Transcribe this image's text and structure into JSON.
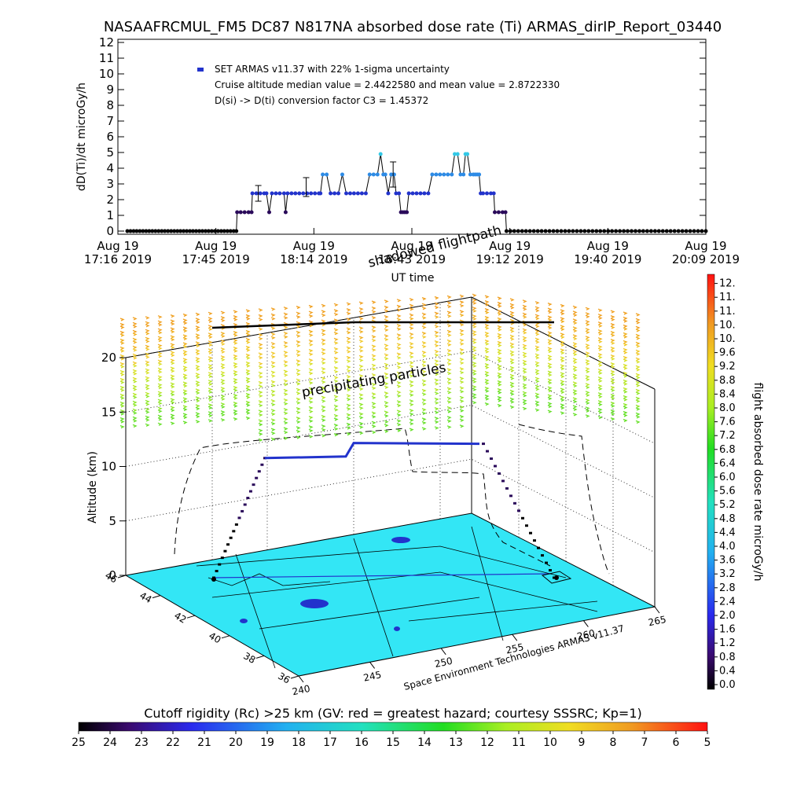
{
  "title": "NASAAFRCMUL_FM5 DC87 N817NA absorbed dose rate (Ti) ARMAS_dirIP_Report_03440",
  "colors": {
    "dose_dark": "#2a0a5a",
    "dose_blue": "#2233cc",
    "dose_cyan": "#33c8e6",
    "map_fill": "#33e6f5",
    "line": "#000000"
  },
  "chart_data": [
    {
      "type": "line",
      "ylabel": "dD(Ti)/dt microGy/h",
      "xlabel": "UT time",
      "ylim": [
        0,
        12
      ],
      "yticks": [
        "0",
        "1",
        "2",
        "3",
        "4",
        "5",
        "6",
        "7",
        "8",
        "9",
        "10",
        "11",
        "12"
      ],
      "xticks": [
        {
          "l1": "Aug 19",
          "l2": "17:16 2019"
        },
        {
          "l1": "Aug 19",
          "l2": "17:45 2019"
        },
        {
          "l1": "Aug 19",
          "l2": "18:14 2019"
        },
        {
          "l1": "Aug 19",
          "l2": "18:43 2019"
        },
        {
          "l1": "Aug 19",
          "l2": "19:12 2019"
        },
        {
          "l1": "Aug 19",
          "l2": "19:40 2019"
        },
        {
          "l1": "Aug 19",
          "l2": "20:09 2019"
        }
      ],
      "legend": [
        "SET ARMAS v11.37 with 22% 1-sigma uncertainty",
        "Cruise altitude median value = 2.4422580 and mean value = 2.8722330",
        "D(si) -> D(ti) conversion factor C3 = 1.45372"
      ],
      "overlay_label": "shadowed flightpath",
      "series": [
        {
          "values": [
            [
              0,
              0
            ],
            [
              1.6,
              0
            ],
            [
              3.2,
              0
            ],
            [
              4.8,
              0
            ],
            [
              6.4,
              0
            ],
            [
              8.0,
              0
            ],
            [
              9.6,
              0
            ],
            [
              11.2,
              0
            ],
            [
              12.8,
              0
            ],
            [
              14.4,
              0
            ],
            [
              16.0,
              0
            ],
            [
              17.6,
              0
            ],
            [
              19.2,
              0
            ],
            [
              20.8,
              0
            ],
            [
              22.4,
              0
            ],
            [
              24.0,
              0
            ],
            [
              25.6,
              0
            ],
            [
              27.2,
              0
            ],
            [
              28.8,
              0
            ],
            [
              30.4,
              0
            ],
            [
              32.0,
              0
            ],
            [
              33.6,
              0
            ],
            [
              35.2,
              0
            ],
            [
              36.8,
              0
            ],
            [
              38.4,
              0
            ],
            [
              40.0,
              0
            ],
            [
              41.6,
              0
            ],
            [
              43.2,
              0
            ],
            [
              44.8,
              0
            ],
            [
              46.4,
              0
            ],
            [
              48.0,
              0
            ],
            [
              49.6,
              0
            ],
            [
              51.2,
              0
            ],
            [
              52.8,
              0
            ],
            [
              54.4,
              0
            ],
            [
              55.8,
              0
            ],
            [
              56.2,
              1.2
            ],
            [
              58.0,
              1.2
            ],
            [
              60.0,
              1.2
            ],
            [
              62.0,
              1.2
            ],
            [
              63.6,
              1.2
            ],
            [
              64.0,
              2.4
            ],
            [
              66.0,
              2.4
            ],
            [
              68.0,
              2.4
            ],
            [
              70.0,
              2.4
            ],
            [
              71.2,
              2.4
            ],
            [
              72.6,
              1.2
            ],
            [
              74.0,
              2.4
            ],
            [
              76.0,
              2.4
            ],
            [
              78.0,
              2.4
            ],
            [
              80.2,
              2.4
            ],
            [
              81.0,
              1.2
            ],
            [
              82.0,
              2.4
            ],
            [
              84.0,
              2.4
            ],
            [
              86.0,
              2.4
            ],
            [
              88.0,
              2.4
            ],
            [
              90.0,
              2.4
            ],
            [
              92.0,
              2.4
            ],
            [
              94.0,
              2.4
            ],
            [
              96.0,
              2.4
            ],
            [
              98.0,
              2.4
            ],
            [
              98.8,
              2.4
            ],
            [
              100.0,
              3.6
            ],
            [
              102.0,
              3.6
            ],
            [
              104.0,
              2.4
            ],
            [
              106.0,
              2.4
            ],
            [
              108.0,
              2.4
            ],
            [
              110.0,
              3.6
            ],
            [
              112.0,
              2.4
            ],
            [
              114.0,
              2.4
            ],
            [
              116.0,
              2.4
            ],
            [
              118.0,
              2.4
            ],
            [
              120.0,
              2.4
            ],
            [
              122.0,
              2.4
            ],
            [
              124.0,
              3.6
            ],
            [
              126.0,
              3.6
            ],
            [
              128.0,
              3.6
            ],
            [
              129.6,
              4.9
            ],
            [
              131.0,
              3.6
            ],
            [
              132.0,
              3.6
            ],
            [
              133.5,
              2.4
            ],
            [
              135.0,
              3.6
            ],
            [
              136.5,
              3.6
            ],
            [
              137.5,
              2.4
            ],
            [
              139.0,
              2.4
            ],
            [
              140.0,
              1.2
            ],
            [
              141.0,
              1.2
            ],
            [
              142.0,
              1.2
            ],
            [
              143.0,
              1.2
            ],
            [
              144.0,
              2.4
            ],
            [
              146.0,
              2.4
            ],
            [
              148.0,
              2.4
            ],
            [
              150.0,
              2.4
            ],
            [
              152.0,
              2.4
            ],
            [
              154.0,
              2.4
            ],
            [
              156.0,
              3.6
            ],
            [
              158.0,
              3.6
            ],
            [
              160.0,
              3.6
            ],
            [
              162.0,
              3.6
            ],
            [
              164.0,
              3.6
            ],
            [
              166.0,
              3.6
            ],
            [
              167.5,
              4.9
            ],
            [
              169.0,
              4.9
            ],
            [
              170.5,
              3.6
            ],
            [
              172.0,
              3.6
            ],
            [
              173.0,
              4.9
            ],
            [
              174.0,
              4.9
            ],
            [
              175.5,
              3.6
            ],
            [
              177.0,
              3.6
            ],
            [
              178.0,
              3.6
            ],
            [
              179.0,
              3.6
            ],
            [
              180.0,
              3.6
            ],
            [
              180.8,
              2.4
            ],
            [
              182.0,
              2.4
            ],
            [
              184.0,
              2.4
            ],
            [
              186.0,
              2.4
            ],
            [
              187.5,
              2.4
            ],
            [
              188.0,
              1.2
            ],
            [
              190.0,
              1.2
            ],
            [
              192.0,
              1.2
            ],
            [
              193.5,
              1.2
            ],
            [
              194.0,
              0
            ],
            [
              196.0,
              0
            ],
            [
              198.0,
              0
            ],
            [
              200.0,
              0
            ],
            [
              202.0,
              0
            ],
            [
              204.0,
              0
            ],
            [
              206.0,
              0
            ],
            [
              208.0,
              0
            ],
            [
              210.0,
              0
            ],
            [
              212.0,
              0
            ],
            [
              214.0,
              0
            ],
            [
              216.0,
              0
            ],
            [
              218.0,
              0
            ],
            [
              220.0,
              0
            ],
            [
              222.0,
              0
            ],
            [
              224.0,
              0
            ],
            [
              226.0,
              0
            ],
            [
              228.0,
              0
            ],
            [
              230.0,
              0
            ],
            [
              232.0,
              0
            ],
            [
              234.0,
              0
            ],
            [
              236.0,
              0
            ],
            [
              238.0,
              0
            ],
            [
              240.0,
              0
            ],
            [
              242.0,
              0
            ],
            [
              244.0,
              0
            ],
            [
              246.0,
              0
            ],
            [
              248.0,
              0
            ],
            [
              250.0,
              0
            ],
            [
              252.0,
              0
            ],
            [
              254.0,
              0
            ],
            [
              256.0,
              0
            ],
            [
              258.0,
              0
            ],
            [
              260.0,
              0
            ],
            [
              262.0,
              0
            ],
            [
              264.0,
              0
            ],
            [
              266.0,
              0
            ],
            [
              268.0,
              0
            ],
            [
              270.0,
              0
            ],
            [
              272.0,
              0
            ],
            [
              274.0,
              0
            ],
            [
              276.0,
              0
            ],
            [
              278.0,
              0
            ],
            [
              280.0,
              0
            ],
            [
              282.0,
              0
            ],
            [
              284.0,
              0
            ],
            [
              286.0,
              0
            ],
            [
              288.0,
              0
            ],
            [
              290.0,
              0
            ],
            [
              292.0,
              0
            ],
            [
              294.0,
              0
            ],
            [
              296.0,
              0
            ]
          ]
        }
      ],
      "error_bars": [
        [
          67.0,
          2.4,
          0.5
        ],
        [
          91.5,
          2.8,
          0.6
        ],
        [
          136.0,
          3.6,
          0.8
        ]
      ]
    },
    {
      "type": "scatter",
      "zlabel": "Altitude (km)",
      "zticks": [
        "0",
        "5",
        "10",
        "15",
        "20"
      ],
      "lat_ticks": [
        "36",
        "38",
        "40",
        "42",
        "44",
        "46"
      ],
      "lon_ticks": [
        "240",
        "245",
        "250",
        "255",
        "260",
        "265"
      ],
      "footer_label": "Space Environment Technologies ARMAS v11.37",
      "overlay_label": "precipitating particles",
      "cruise_altitudes_km": [
        9.8,
        10.6
      ],
      "colorbar": {
        "label": "flight absorbed dose rate microGy/h",
        "ticks": [
          "0.0",
          "0.4",
          "0.8",
          "1.2",
          "1.6",
          "2.0",
          "2.4",
          "2.8",
          "3.2",
          "3.6",
          "4.0",
          "4.4",
          "4.8",
          "5.2",
          "5.6",
          "6.0",
          "6.4",
          "6.8",
          "7.2",
          "7.6",
          "8.0",
          "8.4",
          "8.8",
          "9.2",
          "9.6",
          "10.",
          "10.",
          "11.",
          "11.",
          "12."
        ]
      },
      "bottom_colorbar": {
        "label": "Cutoff rigidity (Rc) >25 km (GV: red = greatest hazard; courtesy SSSRC; Kp=1)",
        "ticks": [
          "25",
          "24",
          "23",
          "22",
          "21",
          "20",
          "19",
          "18",
          "17",
          "16",
          "15",
          "14",
          "13",
          "12",
          "11",
          "10",
          "9",
          "8",
          "7",
          "6",
          "5"
        ]
      }
    }
  ]
}
